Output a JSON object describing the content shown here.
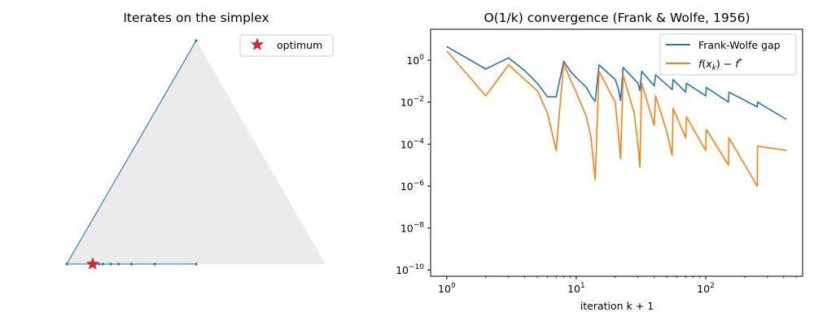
{
  "colors": {
    "blue": "#1f77b4",
    "orange": "#ff7f0e",
    "star": "#d62728",
    "simplex_fill": "#ebebeb"
  },
  "left_panel": {
    "title": "Iterates on the simplex",
    "legend_label": "optimum"
  },
  "right_panel": {
    "title": "O(1/k) convergence (Frank & Wolfe, 1956)",
    "xlabel": "iteration k + 1",
    "legend": [
      "Frank-Wolfe gap",
      "f(x_k) − f*"
    ]
  },
  "chart_data": [
    {
      "type": "scatter",
      "title": "Iterates on the simplex",
      "description_units": "barycentric (x1, x2, x3) on probability simplex",
      "vertices": [
        [
          1,
          0,
          0
        ],
        [
          0,
          1,
          0
        ],
        [
          0,
          0,
          1
        ]
      ],
      "optimum": [
        0.9,
        0.1,
        0.0
      ],
      "iterates": [
        [
          0,
          0,
          1
        ],
        [
          1,
          0,
          0
        ],
        [
          0.5,
          0.5,
          0
        ],
        [
          0.66,
          0.34,
          0
        ],
        [
          0.75,
          0.25,
          0
        ],
        [
          0.8,
          0.2,
          0
        ],
        [
          0.83,
          0.17,
          0
        ],
        [
          0.86,
          0.14,
          0
        ],
        [
          0.875,
          0.125,
          0
        ],
        [
          0.889,
          0.111,
          0
        ],
        [
          0.9,
          0.1,
          0
        ]
      ],
      "legend": [
        "optimum"
      ],
      "legend_position": "upper right",
      "grid": false
    },
    {
      "type": "line",
      "title": "O(1/k) convergence (Frank & Wolfe, 1956)",
      "xlabel": "iteration k + 1",
      "ylabel": "",
      "xscale": "log",
      "yscale": "log",
      "xlim": [
        0.75,
        560
      ],
      "ylim": [
        5e-11,
        30
      ],
      "x_ticks": [
        "10^0",
        "10^1",
        "10^2"
      ],
      "y_ticks": [
        "10^0",
        "10^-2",
        "10^-4",
        "10^-6",
        "10^-8",
        "10^-10"
      ],
      "legend_position": "upper right",
      "grid": false,
      "series": [
        {
          "name": "Frank-Wolfe gap",
          "color": "#1f77b4",
          "points": [
            [
              1,
              4.5
            ],
            [
              2,
              0.38
            ],
            [
              3,
              1.3
            ],
            [
              4,
              0.32
            ],
            [
              5,
              0.08
            ],
            [
              6,
              0.018
            ],
            [
              7,
              0.018
            ],
            [
              8,
              0.9
            ],
            [
              9,
              0.3
            ],
            [
              10,
              0.15
            ],
            [
              12,
              0.05
            ],
            [
              13,
              0.02
            ],
            [
              14,
              0.011
            ],
            [
              15,
              0.6
            ],
            [
              20,
              0.12
            ],
            [
              21,
              0.05
            ],
            [
              22,
              0.012
            ],
            [
              23,
              0.45
            ],
            [
              30,
              0.08
            ],
            [
              31,
              0.035
            ],
            [
              32,
              0.3
            ],
            [
              40,
              0.06
            ],
            [
              41,
              0.2
            ],
            [
              55,
              0.04
            ],
            [
              56,
              0.12
            ],
            [
              70,
              0.03
            ],
            [
              71,
              0.08
            ],
            [
              100,
              0.02
            ],
            [
              101,
              0.05
            ],
            [
              150,
              0.01
            ],
            [
              151,
              0.03
            ],
            [
              250,
              0.006
            ],
            [
              251,
              0.01
            ],
            [
              420,
              0.0015
            ]
          ]
        },
        {
          "name": "f(x_k) − f*",
          "color": "#ff7f0e",
          "points": [
            [
              1,
              2.8
            ],
            [
              2,
              0.02
            ],
            [
              3,
              0.6
            ],
            [
              4,
              0.12
            ],
            [
              5,
              0.035
            ],
            [
              6,
              0.003
            ],
            [
              7,
              5e-05
            ],
            [
              8,
              0.7
            ],
            [
              9,
              0.12
            ],
            [
              10,
              0.03
            ],
            [
              12,
              0.002
            ],
            [
              13,
              0.0002
            ],
            [
              14,
              2e-06
            ],
            [
              15,
              0.3
            ],
            [
              20,
              0.01
            ],
            [
              21,
              0.0005
            ],
            [
              22,
              2e-05
            ],
            [
              23,
              0.2
            ],
            [
              28,
              0.003
            ],
            [
              30,
              0.0001
            ],
            [
              31,
              8e-06
            ],
            [
              32,
              0.08
            ],
            [
              40,
              0.0008
            ],
            [
              41,
              0.02
            ],
            [
              50,
              0.0004
            ],
            [
              55,
              3e-05
            ],
            [
              56,
              0.005
            ],
            [
              70,
              0.0002
            ],
            [
              71,
              0.002
            ],
            [
              100,
              5e-05
            ],
            [
              101,
              0.0005
            ],
            [
              150,
              1e-05
            ],
            [
              151,
              0.0002
            ],
            [
              250,
              1e-06
            ],
            [
              251,
              8e-05
            ],
            [
              420,
              5e-05
            ]
          ]
        }
      ]
    }
  ]
}
